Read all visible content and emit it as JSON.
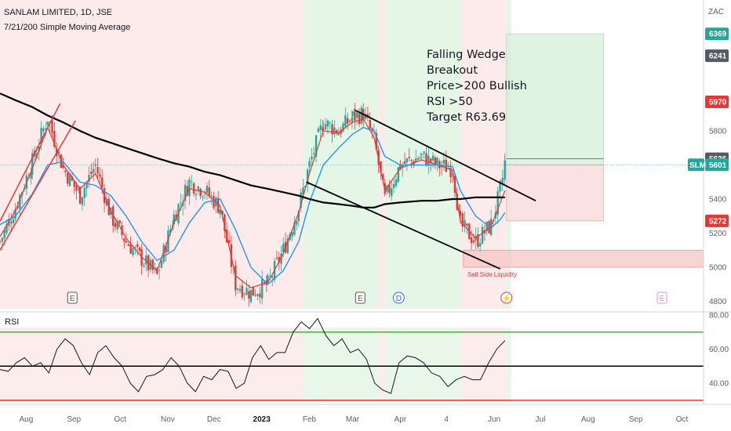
{
  "header": {
    "symbol_line": "SANLAM LIMITED, 1D, JSE",
    "indicator_line": "7/21/200 Simple Moving Average"
  },
  "annotation": {
    "lines": [
      "Falling Wedge",
      "Breakout",
      "Price>200 Bullish",
      "RSI >50",
      "Target R63.69"
    ],
    "liquidity_label": "Sell Side Liquidity"
  },
  "currency": "ZAC",
  "rsi_label": "RSI",
  "price_axis": {
    "ticks": [
      "5800",
      "5400",
      "5200",
      "5000",
      "4800"
    ],
    "badges": [
      {
        "label": "6369",
        "color": "#26a69a",
        "value": 6369
      },
      {
        "label": "6241",
        "color": "#555a63",
        "value": 6241
      },
      {
        "label": "5970",
        "color": "#e53935",
        "value": 5970
      },
      {
        "label": "5636",
        "color": "#555a63",
        "value": 5636
      },
      {
        "label": "5601",
        "color": "#26a69a",
        "value": 5601
      },
      {
        "label": "5272",
        "color": "#e53935",
        "value": 5272
      }
    ],
    "ticker_tag": "SLM"
  },
  "rsi_axis": {
    "ticks": [
      "80.00",
      "60.00",
      "40.00"
    ]
  },
  "time_axis": {
    "labels": [
      {
        "text": "Aug",
        "bold": false
      },
      {
        "text": "Sep",
        "bold": false
      },
      {
        "text": "Oct",
        "bold": false
      },
      {
        "text": "Nov",
        "bold": false
      },
      {
        "text": "Dec",
        "bold": false
      },
      {
        "text": "2023",
        "bold": true
      },
      {
        "text": "Feb",
        "bold": false
      },
      {
        "text": "Mar",
        "bold": false
      },
      {
        "text": "Apr",
        "bold": false
      },
      {
        "text": "4",
        "bold": false
      },
      {
        "text": "Jun",
        "bold": false
      },
      {
        "text": "Jul",
        "bold": false
      },
      {
        "text": "Aug",
        "bold": false
      },
      {
        "text": "Sep",
        "bold": false
      },
      {
        "text": "Oct",
        "bold": false
      }
    ]
  },
  "event_markers": [
    {
      "label": "E",
      "kind": "earnings"
    },
    {
      "label": "E",
      "kind": "earnings"
    },
    {
      "label": "D",
      "kind": "dividend"
    },
    {
      "label": "⚡",
      "kind": "split"
    },
    {
      "label": "E",
      "kind": "earnings-upcoming"
    }
  ],
  "colors": {
    "bull": "#26a69a",
    "bear": "#e53935",
    "sma7": "#e53935",
    "sma21": "#2196f3",
    "sma200": "#000000",
    "green_bg": "#e6f6e6",
    "red_bg": "#fdeaea",
    "wedge": "#000000"
  },
  "chart_data": [
    {
      "type": "candlestick",
      "title": "SANLAM LIMITED, 1D, JSE",
      "x_range": [
        "2022-07-15",
        "2023-10-15"
      ],
      "ylim": [
        4780,
        6450
      ],
      "y_ticks": [
        4800,
        5000,
        5200,
        5400,
        5800
      ],
      "last_price": 5601,
      "key_levels": {
        "target": 6369,
        "prior_high": 6241,
        "resistance": 5970,
        "day_high": 5636,
        "stop": 5272
      },
      "series": [
        {
          "name": "Price",
          "values": [
            {
              "d": "2022-07-15",
              "c": 5150
            },
            {
              "d": "2022-07-25",
              "c": 5350
            },
            {
              "d": "2022-08-05",
              "c": 5620
            },
            {
              "d": "2022-08-15",
              "c": 5880
            },
            {
              "d": "2022-08-25",
              "c": 5580
            },
            {
              "d": "2022-09-05",
              "c": 5420
            },
            {
              "d": "2022-09-15",
              "c": 5600
            },
            {
              "d": "2022-09-25",
              "c": 5300
            },
            {
              "d": "2022-10-05",
              "c": 5150
            },
            {
              "d": "2022-10-15",
              "c": 5050
            },
            {
              "d": "2022-10-25",
              "c": 4950
            },
            {
              "d": "2022-11-05",
              "c": 5300
            },
            {
              "d": "2022-11-15",
              "c": 5500
            },
            {
              "d": "2022-11-25",
              "c": 5450
            },
            {
              "d": "2022-12-05",
              "c": 5350
            },
            {
              "d": "2022-12-15",
              "c": 4900
            },
            {
              "d": "2022-12-25",
              "c": 4850
            },
            {
              "d": "2023-01-05",
              "c": 4900
            },
            {
              "d": "2023-01-15",
              "c": 5100
            },
            {
              "d": "2023-01-25",
              "c": 5350
            },
            {
              "d": "2023-02-01",
              "c": 5600
            },
            {
              "d": "2023-02-10",
              "c": 5850
            },
            {
              "d": "2023-02-20",
              "c": 5800
            },
            {
              "d": "2023-03-01",
              "c": 5880
            },
            {
              "d": "2023-03-08",
              "c": 5900
            },
            {
              "d": "2023-03-15",
              "c": 5750
            },
            {
              "d": "2023-03-22",
              "c": 5400
            },
            {
              "d": "2023-04-01",
              "c": 5600
            },
            {
              "d": "2023-04-15",
              "c": 5650
            },
            {
              "d": "2023-04-25",
              "c": 5600
            },
            {
              "d": "2023-05-05",
              "c": 5580
            },
            {
              "d": "2023-05-10",
              "c": 5250
            },
            {
              "d": "2023-05-20",
              "c": 5150
            },
            {
              "d": "2023-05-30",
              "c": 5250
            },
            {
              "d": "2023-06-05",
              "c": 5450
            },
            {
              "d": "2023-06-08",
              "c": 5601
            }
          ]
        },
        {
          "name": "SMA 7",
          "values": [
            5180,
            5330,
            5580,
            5820,
            5600,
            5460,
            5550,
            5330,
            5170,
            5060,
            4980,
            5260,
            5460,
            5440,
            5360,
            4950,
            4880,
            4910,
            5080,
            5320,
            5550,
            5800,
            5790,
            5850,
            5870,
            5760,
            5450,
            5580,
            5630,
            5600,
            5570,
            5270,
            5170,
            5240,
            5380,
            5450
          ]
        },
        {
          "name": "SMA 21",
          "values": [
            5250,
            5300,
            5430,
            5600,
            5620,
            5500,
            5480,
            5420,
            5300,
            5150,
            5040,
            5100,
            5260,
            5380,
            5400,
            5220,
            5000,
            4900,
            4980,
            5150,
            5380,
            5600,
            5700,
            5780,
            5820,
            5800,
            5650,
            5600,
            5600,
            5600,
            5590,
            5450,
            5300,
            5230,
            5280,
            5320
          ]
        },
        {
          "name": "SMA 200",
          "values": [
            6020,
            5980,
            5940,
            5890,
            5850,
            5800,
            5760,
            5730,
            5700,
            5670,
            5640,
            5610,
            5590,
            5560,
            5540,
            5510,
            5480,
            5460,
            5440,
            5420,
            5400,
            5380,
            5370,
            5360,
            5350,
            5350,
            5370,
            5380,
            5390,
            5390,
            5400,
            5400,
            5410,
            5410,
            5410,
            5410
          ]
        }
      ]
    },
    {
      "type": "line",
      "title": "RSI",
      "ylim": [
        30,
        82
      ],
      "y_ticks": [
        40,
        60,
        80
      ],
      "levels": [
        30,
        50,
        70
      ],
      "series": [
        {
          "name": "RSI",
          "values": [
            48,
            47,
            52,
            55,
            50,
            52,
            46,
            60,
            66,
            62,
            52,
            45,
            58,
            62,
            55,
            50,
            40,
            35,
            44,
            45,
            48,
            55,
            50,
            40,
            35,
            44,
            42,
            48,
            47,
            37,
            40,
            55,
            62,
            54,
            58,
            58,
            70,
            76,
            72,
            78,
            68,
            62,
            66,
            58,
            60,
            54,
            40,
            36,
            34,
            52,
            56,
            55,
            52,
            46,
            44,
            38,
            42,
            44,
            42,
            42,
            52,
            60,
            65
          ]
        }
      ]
    }
  ]
}
